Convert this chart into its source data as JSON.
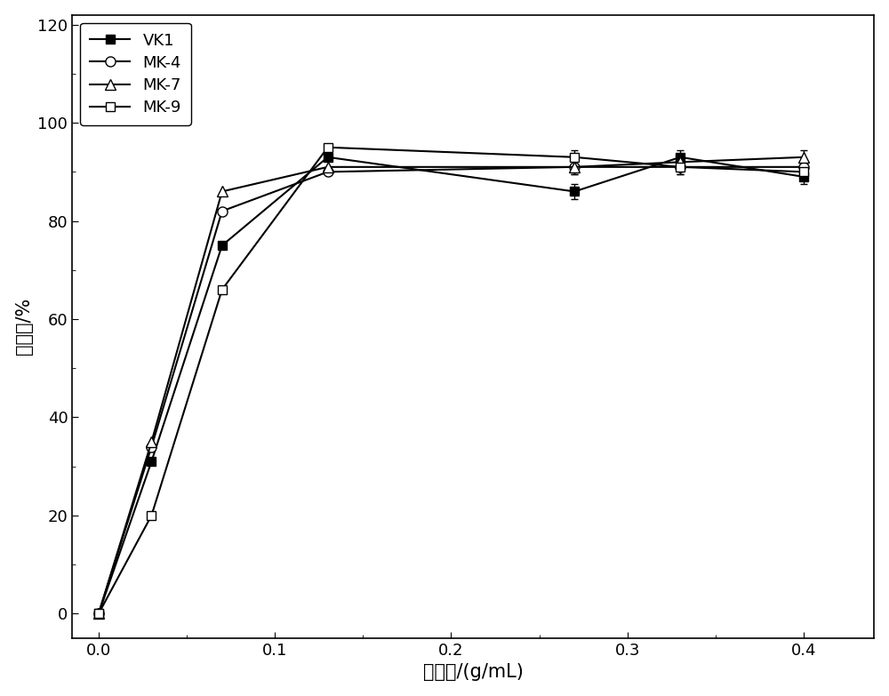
{
  "x": [
    0.0,
    0.03,
    0.07,
    0.13,
    0.27,
    0.33,
    0.4
  ],
  "VK1": [
    0,
    31,
    75,
    93,
    86,
    93,
    89
  ],
  "MK4": [
    0,
    34,
    82,
    90,
    91,
    91,
    91
  ],
  "MK7": [
    0,
    35,
    86,
    91,
    91,
    92,
    93
  ],
  "MK9": [
    0,
    20,
    66,
    95,
    93,
    91,
    90
  ],
  "xlabel": "酶用量/(g/mL)",
  "ylabel": "回收率/%",
  "ylim": [
    -5,
    122
  ],
  "xlim": [
    -0.015,
    0.44
  ],
  "yticks": [
    0,
    20,
    40,
    60,
    80,
    100,
    120
  ],
  "xticks": [
    0.0,
    0.1,
    0.2,
    0.3,
    0.4
  ],
  "legend_labels": [
    "VK1",
    "MK-4",
    "MK-7",
    "MK-9"
  ],
  "line_color": "#000000",
  "background_color": "#ffffff",
  "label_fontsize": 15,
  "tick_fontsize": 13,
  "legend_fontsize": 13
}
